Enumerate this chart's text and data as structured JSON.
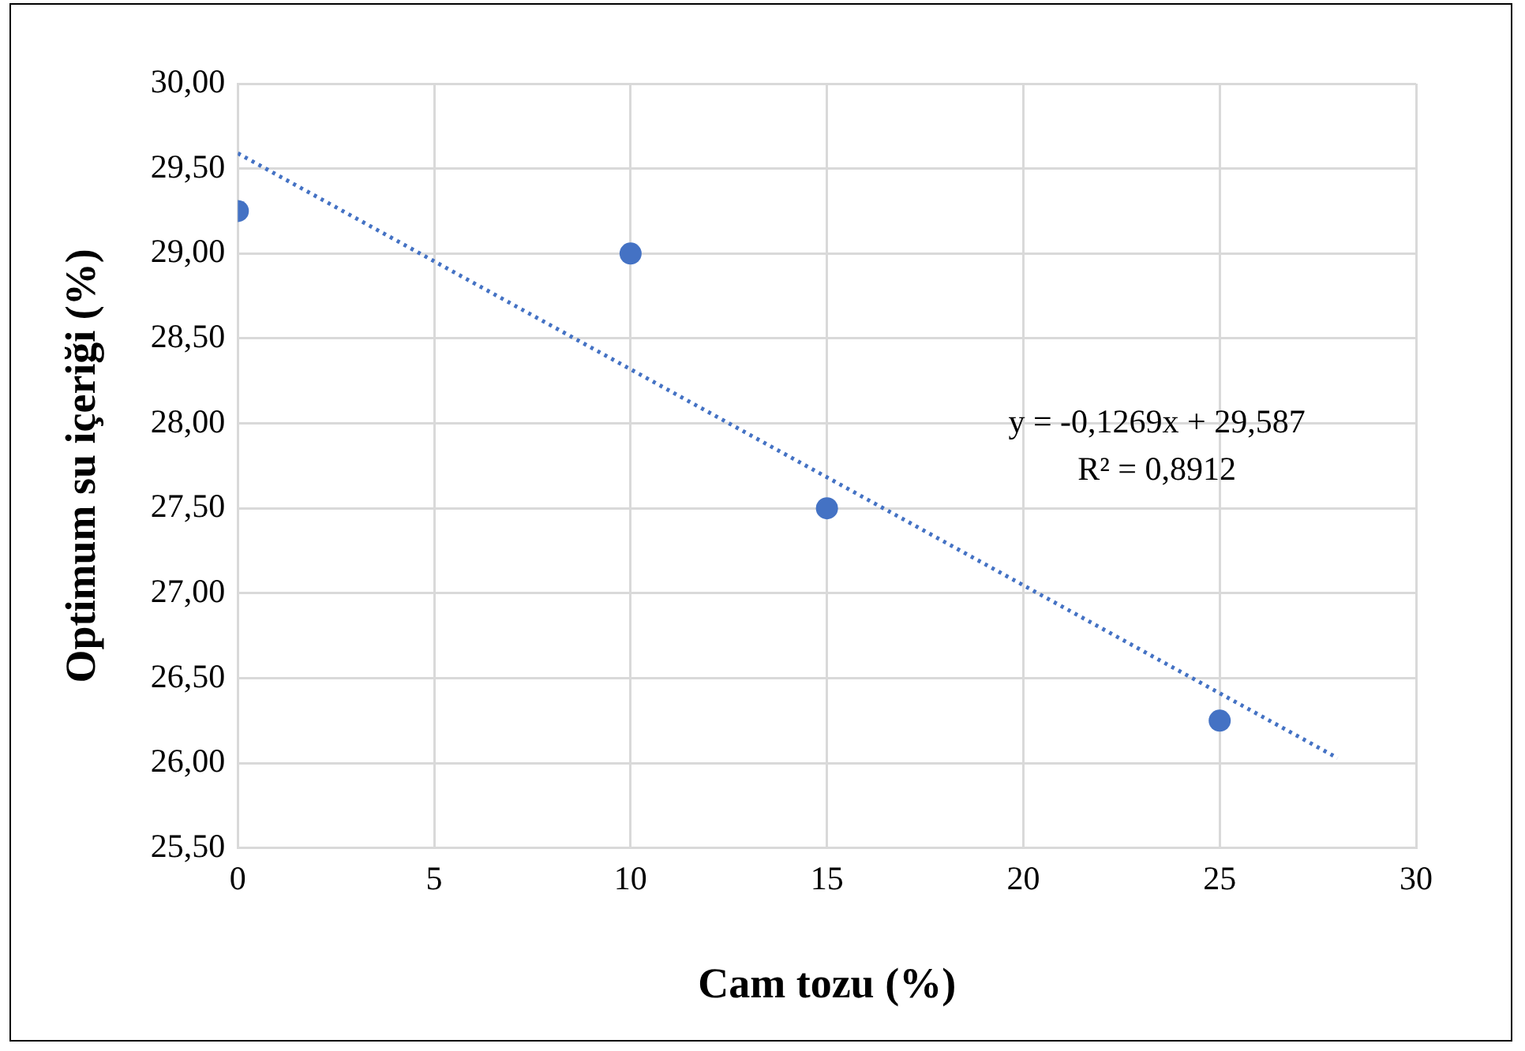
{
  "chart_data": {
    "type": "scatter",
    "xlabel": "Cam tozu (%)",
    "ylabel": "Optimum su içeriği (%)",
    "xlim": [
      0,
      30
    ],
    "xticks": [
      0,
      5,
      10,
      15,
      20,
      25,
      30
    ],
    "ylim": [
      25.5,
      30
    ],
    "yticks": [
      {
        "value": 25.5,
        "label": "25,50"
      },
      {
        "value": 26,
        "label": "26,00"
      },
      {
        "value": 26.5,
        "label": "26,50"
      },
      {
        "value": 27,
        "label": "27,00"
      },
      {
        "value": 27.5,
        "label": "27,50"
      },
      {
        "value": 28,
        "label": "28,00"
      },
      {
        "value": 28.5,
        "label": "28,50"
      },
      {
        "value": 29,
        "label": "29,00"
      },
      {
        "value": 29.5,
        "label": "29,50"
      },
      {
        "value": 30,
        "label": "30,00"
      }
    ],
    "grid": true,
    "legend": false,
    "marker": "circle",
    "series": [
      {
        "type": "scatter",
        "color": "#4472c4",
        "x": [
          0,
          10,
          15,
          25
        ],
        "values": [
          29.25,
          29.0,
          27.5,
          26.25
        ]
      },
      {
        "type": "line",
        "color": "#4472c4",
        "line_style": "dotted",
        "marker": "none",
        "x": [
          0,
          28
        ],
        "values": [
          29.59,
          26.03
        ]
      }
    ],
    "annotations": [
      "y = -0,1269x + 29,587",
      "R² = 0,8912"
    ]
  }
}
